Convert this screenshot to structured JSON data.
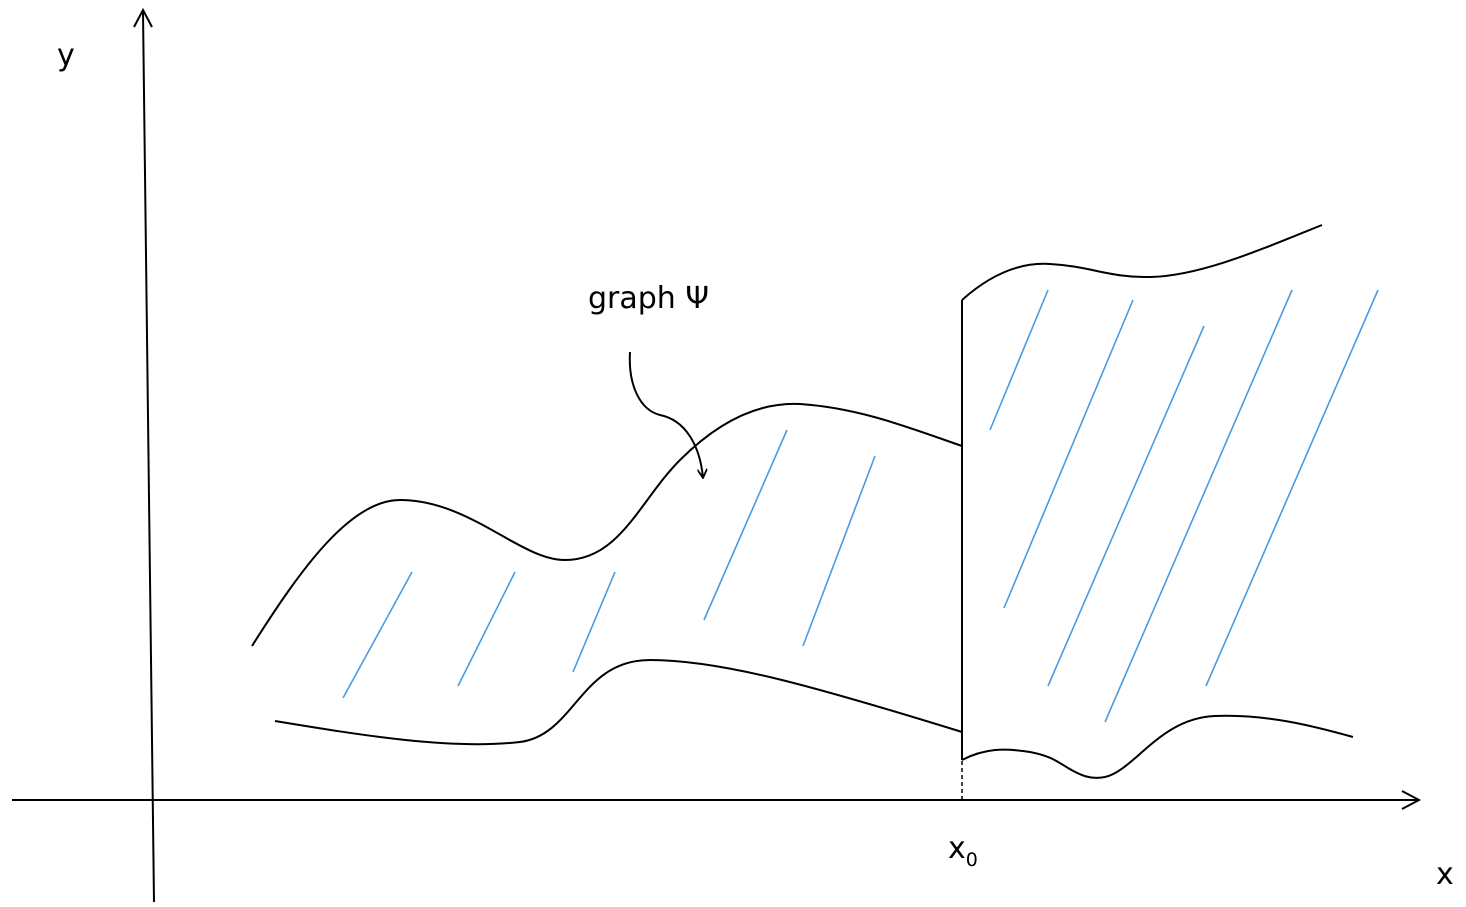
{
  "labels": {
    "y_axis": "y",
    "x_axis": "x",
    "x0_main": "x",
    "x0_sub": "0",
    "graph_label": "graph Ψ"
  },
  "colors": {
    "ink": "#000000",
    "hatch": "#4a9be0",
    "background": "#ffffff"
  }
}
